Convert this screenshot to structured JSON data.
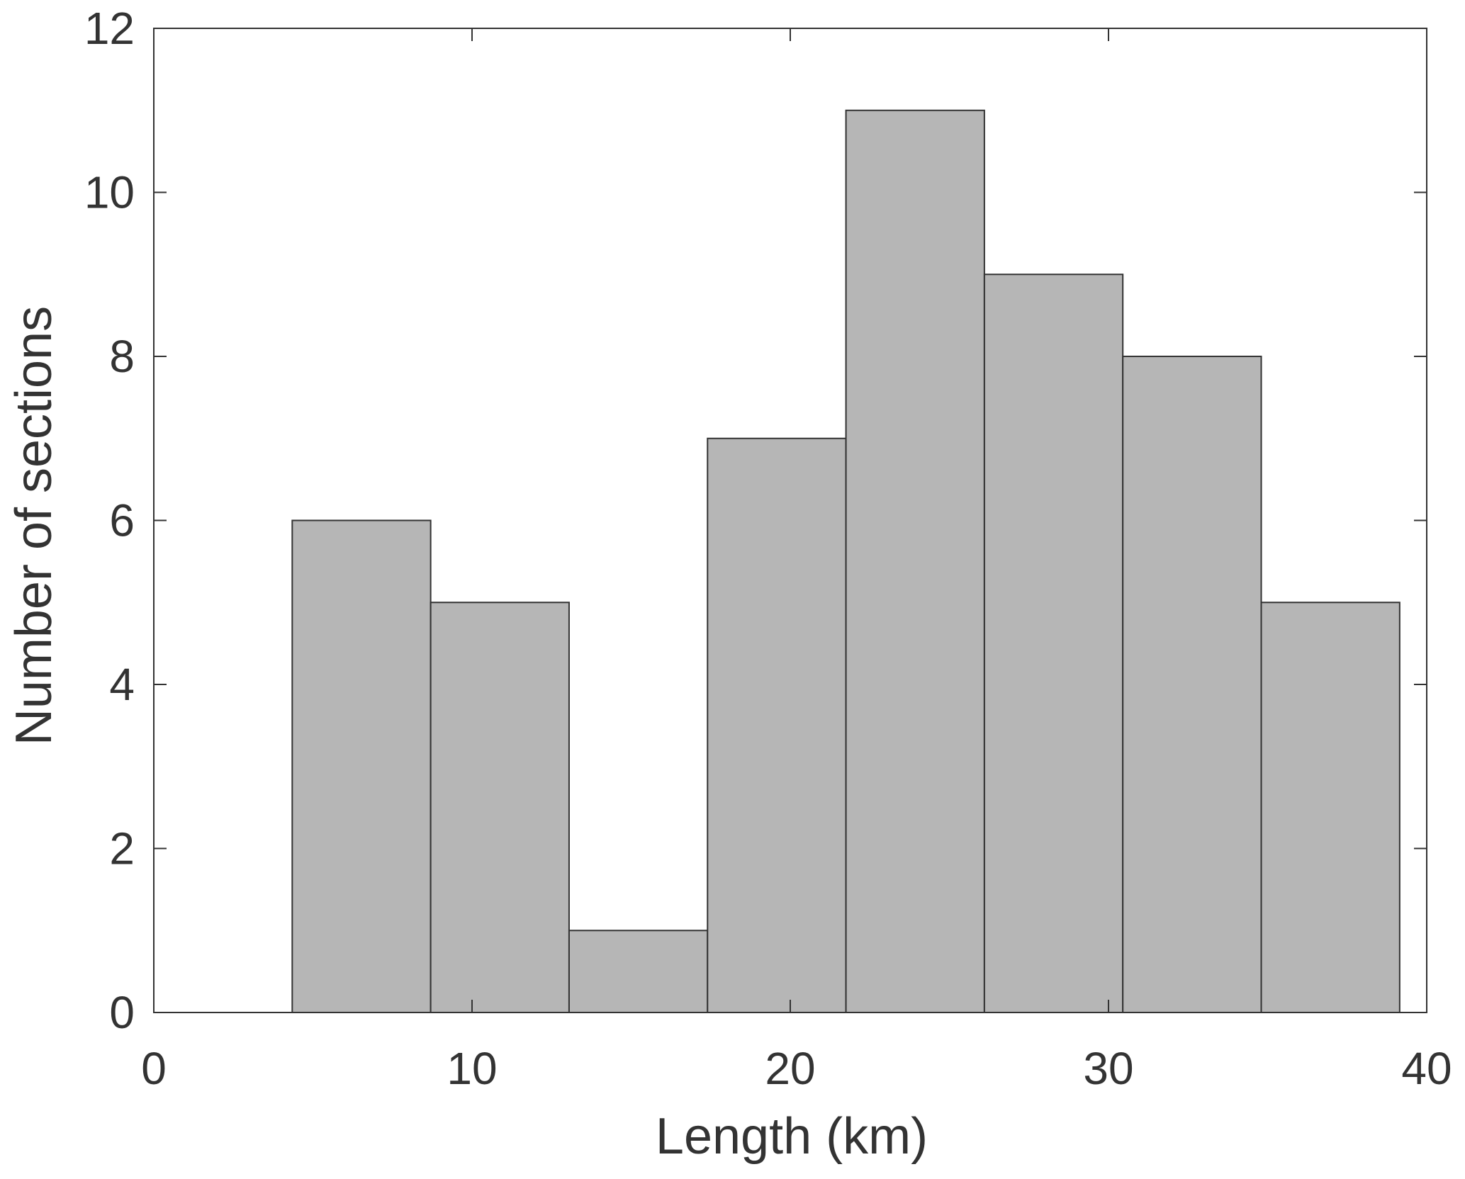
{
  "chart_data": {
    "type": "bar",
    "subtype": "histogram",
    "title": "",
    "xlabel": "Length (km)",
    "ylabel": "Number of sections",
    "xlim": [
      0,
      40
    ],
    "ylim": [
      0,
      12
    ],
    "xticks": [
      "0",
      "10",
      "20",
      "30",
      "40"
    ],
    "yticks": [
      "0",
      "2",
      "4",
      "6",
      "8",
      "10",
      "12"
    ],
    "bin_edges": [
      4.35,
      8.7,
      13.05,
      17.4,
      21.75,
      26.1,
      30.45,
      34.8,
      39.15
    ],
    "values": [
      6,
      5,
      1,
      7,
      11,
      9,
      8,
      5
    ],
    "grid": false,
    "legend": "none",
    "colors": {
      "bar_fill": "#b6b6b6",
      "bar_edge": "#333333",
      "axis": "#333333",
      "text": "#333333"
    }
  }
}
